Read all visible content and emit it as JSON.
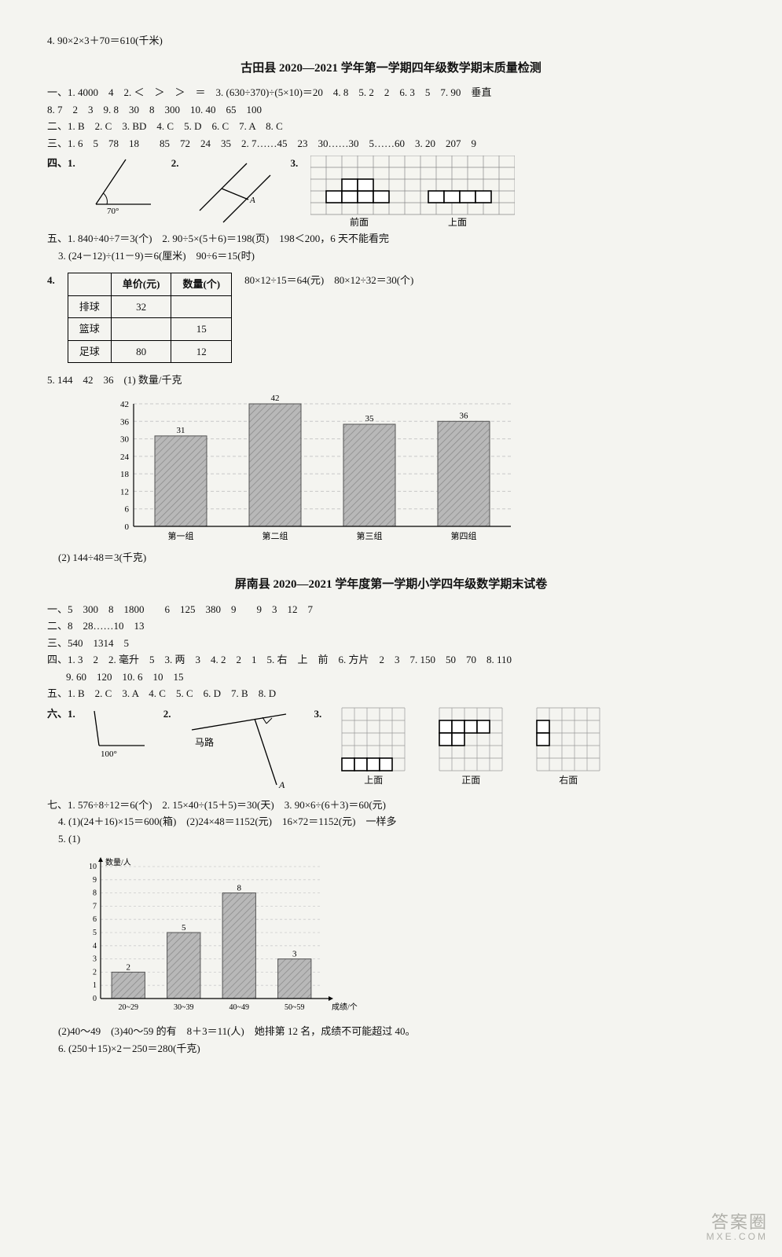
{
  "top_line": "4. 90×2×3＋70＝610(千米)",
  "gutian": {
    "title": "古田县 2020—2021 学年第一学期四年级数学期末质量检测",
    "sec1": "一、1. 4000　4　2. ＜　＞　＞　＝　3. (630÷370)÷(5×10)＝20　4. 8　5. 2　2　6. 3　5　7. 90　垂直",
    "sec1b": "8. 7　2　3　9. 8　30　8　300　10. 40　65　100",
    "sec2": "二、1. B　2. C　3. BD　4. C　5. D　6. C　7. A　8. C",
    "sec3": "三、1. 6　5　78　18　　85　72　24　35　2. 7……45　23　30……30　5……60　3. 20　207　9",
    "sec4_label": "四、1.",
    "angle_label": "70°",
    "sec4_2": "2.",
    "sec4_3": "3.",
    "grid_front": "前面",
    "grid_top": "上面",
    "sec5_1": "五、1. 840÷40÷7＝3(个)　2. 90÷5×(5＋6)＝198(页)　198＜200，6 天不能看完",
    "sec5_3": "3. (24－12)÷(11－9)＝6(厘米)　90÷6＝15(时)",
    "sec5_4": "4.",
    "sec5_4_side": "80×12÷15＝64(元)　80×12÷32＝30(个)",
    "table": {
      "head": [
        "",
        "单价(元)",
        "数量(个)"
      ],
      "rows": [
        [
          "排球",
          "32",
          ""
        ],
        [
          "篮球",
          "",
          "15"
        ],
        [
          "足球",
          "80",
          "12"
        ]
      ]
    },
    "sec5_5": "5. 144　42　36　(1) 数量/千克",
    "chart1": {
      "type": "bar",
      "ylim": [
        0,
        42
      ],
      "ytick_step": 6,
      "categories": [
        "第一组",
        "第二组",
        "第三组",
        "第四组"
      ],
      "values": [
        31,
        42,
        35,
        36
      ],
      "bar_color": "#b8b8b8",
      "bar_hatch": "#8a8a8a",
      "grid_color": "#c8c8c8",
      "bar_border": "#555555",
      "axis_label_fontsize": 11,
      "value_label_fontsize": 11,
      "bar_width_ratio": 0.55
    },
    "sec5_5b": "(2) 144÷48＝3(千克)"
  },
  "pingnan": {
    "title": "屏南县 2020—2021 学年度第一学期小学四年级数学期末试卷",
    "sec1": "一、5　300　8　1800　　6　125　380　9　　9　3　12　7",
    "sec2": "二、8　28……10　13",
    "sec3": "三、540　1314　5",
    "sec4": "四、1. 3　2　2. 毫升　5　3. 两　3　4. 2　2　1　5. 右　上　前　6. 方片　2　3　7. 150　50　70　8. 110",
    "sec4b": "9. 60　120　10. 6　10　15",
    "sec5": "五、1. B　2. C　3. A　4. C　5. C　6. D　7. B　8. D",
    "sec6_label": "六、1.",
    "angle_label": "100°",
    "sec6_2": "2.",
    "road_label": "马路",
    "sec6_3": "3.",
    "view_top": "上面",
    "view_front": "正面",
    "view_right": "右面",
    "sec7_1": "七、1. 576÷8÷12＝6(个)　2. 15×40÷(15＋5)＝30(天)　3. 90×6÷(6＋3)＝60(元)",
    "sec7_4": "4. (1)(24＋16)×15＝600(箱)　(2)24×48＝1152(元)　16×72＝1152(元)　一样多",
    "sec7_5": "5. (1)",
    "chart2": {
      "type": "bar",
      "ylabel": "数量/人",
      "xlabel": "成绩/个",
      "ylim": [
        0,
        10
      ],
      "ytick_step": 1,
      "categories": [
        "20~29",
        "30~39",
        "40~49",
        "50~59"
      ],
      "values": [
        2,
        5,
        8,
        3
      ],
      "bar_color": "#b8b8b8",
      "bar_hatch": "#8a8a8a",
      "grid_color": "#cccccc",
      "bar_border": "#555555",
      "axis_label_fontsize": 10,
      "value_label_fontsize": 11,
      "bar_width_ratio": 0.6
    },
    "sec7_5b": "(2)40～49　(3)40～59 的有　8＋3＝11(人)　她排第 12 名，成绩不可能超过 40。",
    "sec7_6": "6. (250＋15)×2－250＝280(千克)"
  },
  "watermark": {
    "big": "答案圈",
    "small": "MXE.COM"
  }
}
